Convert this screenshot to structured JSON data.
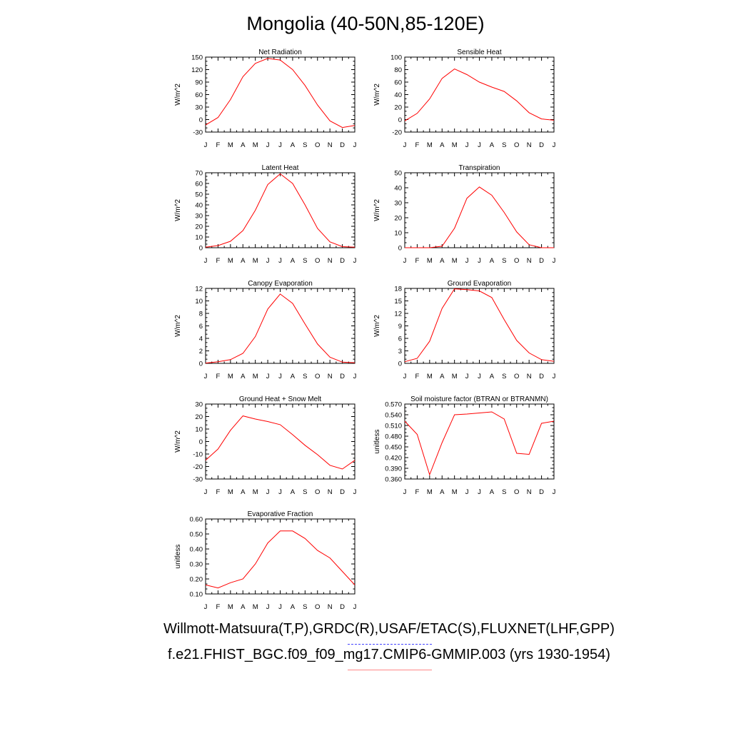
{
  "title": "Mongolia (40-50N,85-120E)",
  "footer": {
    "line1": "Willmott-Matsuura(T,P),GRDC(R),USAF/ETAC(S),FLUXNET(LHF,GPP)",
    "line2": "f.e21.FHIST_BGC.f09_f09_mg17.CMIP6-GMMIP.003 (yrs 1930-1954)"
  },
  "colors": {
    "series": "#ff0000",
    "axis": "#000000",
    "blue_dash": "#4444ff",
    "red_line": "#ff8888"
  },
  "chart_data": [
    {
      "type": "line",
      "title": "Net Radiation",
      "ylabel": "W/m^2",
      "categories": [
        "J",
        "F",
        "M",
        "A",
        "M",
        "J",
        "J",
        "A",
        "S",
        "O",
        "N",
        "D",
        "J"
      ],
      "values": [
        -13,
        5,
        48,
        103,
        135,
        147,
        143,
        120,
        82,
        35,
        -3,
        -19,
        -14
      ],
      "ylim": [
        -30,
        150
      ],
      "yticks": [
        "-30",
        "0",
        "30",
        "60",
        "90",
        "120",
        "150"
      ]
    },
    {
      "type": "line",
      "title": "Sensible Heat",
      "ylabel": "W/m^2",
      "categories": [
        "J",
        "F",
        "M",
        "A",
        "M",
        "J",
        "J",
        "A",
        "S",
        "O",
        "N",
        "D",
        "J"
      ],
      "values": [
        -2,
        10,
        33,
        66,
        81,
        72,
        60,
        52,
        45,
        30,
        11,
        1,
        -1
      ],
      "ylim": [
        -20,
        100
      ],
      "yticks": [
        "-20",
        "0",
        "20",
        "40",
        "60",
        "80",
        "100"
      ]
    },
    {
      "type": "line",
      "title": "Latent Heat",
      "ylabel": "W/m^2",
      "categories": [
        "J",
        "F",
        "M",
        "A",
        "M",
        "J",
        "J",
        "A",
        "S",
        "O",
        "N",
        "D",
        "J"
      ],
      "values": [
        0.5,
        2,
        6,
        16,
        35,
        59,
        69,
        60,
        40,
        18,
        5.5,
        1,
        0.5
      ],
      "ylim": [
        0,
        70
      ],
      "yticks": [
        "0",
        "10",
        "20",
        "30",
        "40",
        "50",
        "60",
        "70"
      ]
    },
    {
      "type": "line",
      "title": "Transpiration",
      "ylabel": "W/m^2",
      "categories": [
        "J",
        "F",
        "M",
        "A",
        "M",
        "J",
        "J",
        "A",
        "S",
        "O",
        "N",
        "D",
        "J"
      ],
      "values": [
        0,
        0,
        0,
        1,
        13,
        33,
        40.5,
        35,
        23.5,
        10.5,
        2,
        0,
        0
      ],
      "ylim": [
        0,
        50
      ],
      "yticks": [
        "0",
        "10",
        "20",
        "30",
        "40",
        "50"
      ]
    },
    {
      "type": "line",
      "title": "Canopy Evaporation",
      "ylabel": "W/m^2",
      "categories": [
        "J",
        "F",
        "M",
        "A",
        "M",
        "J",
        "J",
        "A",
        "S",
        "O",
        "N",
        "D",
        "J"
      ],
      "values": [
        0.05,
        0.25,
        0.6,
        1.6,
        4.3,
        8.7,
        11.1,
        9.6,
        6.3,
        3.1,
        1.0,
        0.2,
        0.1
      ],
      "ylim": [
        0,
        12
      ],
      "yticks": [
        "0",
        "2",
        "4",
        "6",
        "8",
        "10",
        "12"
      ]
    },
    {
      "type": "line",
      "title": "Ground Evaporation",
      "ylabel": "W/m^2",
      "categories": [
        "J",
        "F",
        "M",
        "A",
        "M",
        "J",
        "J",
        "A",
        "S",
        "O",
        "N",
        "D",
        "J"
      ],
      "values": [
        0.4,
        1.2,
        5.3,
        13.2,
        17.9,
        17.7,
        17.4,
        15.8,
        10.5,
        5.5,
        2.5,
        0.9,
        0.5
      ],
      "ylim": [
        0,
        18
      ],
      "yticks": [
        "0",
        "3",
        "6",
        "9",
        "12",
        "15",
        "18"
      ]
    },
    {
      "type": "line",
      "title": "Ground Heat + Snow Melt",
      "ylabel": "W/m^2",
      "categories": [
        "J",
        "F",
        "M",
        "A",
        "M",
        "J",
        "J",
        "A",
        "S",
        "O",
        "N",
        "D",
        "J"
      ],
      "values": [
        -15,
        -6,
        9,
        20.5,
        18,
        16,
        13.5,
        5.5,
        -3,
        -10.5,
        -19,
        -22,
        -15
      ],
      "ylim": [
        -30,
        30
      ],
      "yticks": [
        "-30",
        "-20",
        "-10",
        "0",
        "10",
        "20",
        "30"
      ]
    },
    {
      "type": "line",
      "title": "Soil moisture factor (BTRAN or BTRANMN)",
      "ylabel": "unitless",
      "categories": [
        "J",
        "F",
        "M",
        "A",
        "M",
        "J",
        "J",
        "A",
        "S",
        "O",
        "N",
        "D",
        "J"
      ],
      "values": [
        0.522,
        0.485,
        0.372,
        0.462,
        0.54,
        0.542,
        0.545,
        0.548,
        0.528,
        0.432,
        0.429,
        0.516,
        0.522
      ],
      "ylim": [
        0.36,
        0.57
      ],
      "yticks": [
        "0.360",
        "0.390",
        "0.420",
        "0.450",
        "0.480",
        "0.510",
        "0.540",
        "0.570"
      ]
    },
    {
      "type": "line",
      "title": "Evaporative Fraction",
      "ylabel": "unitless",
      "categories": [
        "J",
        "F",
        "M",
        "A",
        "M",
        "J",
        "J",
        "A",
        "S",
        "O",
        "N",
        "D",
        "J"
      ],
      "values": [
        0.16,
        0.14,
        0.175,
        0.2,
        0.3,
        0.44,
        0.52,
        0.52,
        0.47,
        0.39,
        0.34,
        0.25,
        0.16
      ],
      "ylim": [
        0.1,
        0.6
      ],
      "yticks": [
        "0.10",
        "0.20",
        "0.30",
        "0.40",
        "0.50",
        "0.60"
      ]
    }
  ]
}
